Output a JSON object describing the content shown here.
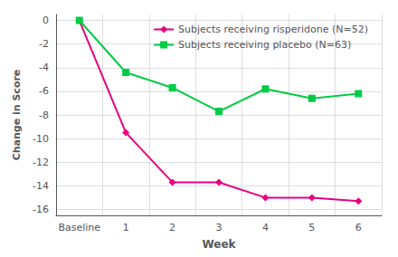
{
  "chart_data": {
    "type": "line",
    "xlabel": "Week",
    "ylabel": "Change in Score",
    "categories": [
      "Baseline",
      "1",
      "2",
      "3",
      "4",
      "5",
      "6"
    ],
    "series": [
      {
        "name": "Subjects receiving risperidone (N=52)",
        "color": "#e8007f",
        "marker": "diamond",
        "values": [
          0,
          -9.5,
          -13.7,
          -13.7,
          -15.0,
          -15.0,
          -15.3
        ]
      },
      {
        "name": "Subjects receiving placebo (N=63)",
        "color": "#00cc44",
        "marker": "square",
        "values": [
          0,
          -4.4,
          -5.7,
          -7.7,
          -5.8,
          -6.6,
          -6.2
        ]
      }
    ],
    "ylim": [
      -16.5,
      0.5
    ],
    "yticks": [
      0,
      -2,
      -4,
      -6,
      -8,
      -10,
      -12,
      -14,
      -16
    ],
    "grid": true,
    "legend": "upper right"
  }
}
